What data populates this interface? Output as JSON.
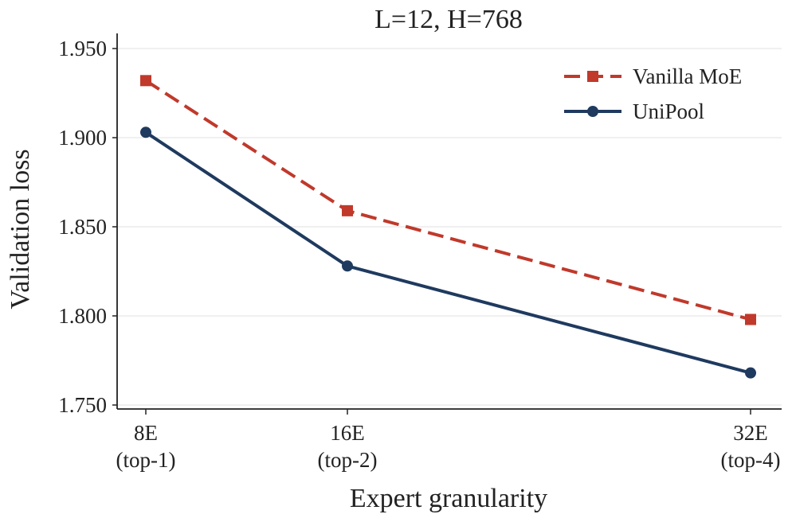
{
  "chart_data": {
    "type": "line",
    "title": "L=12, H=768",
    "xlabel": "Expert granularity",
    "ylabel": "Validation loss",
    "categories": [
      {
        "line1": "8E",
        "line2": "(top-1)",
        "x": 8
      },
      {
        "line1": "16E",
        "line2": "(top-2)",
        "x": 16
      },
      {
        "line1": "32E",
        "line2": "(top-4)",
        "x": 32
      }
    ],
    "ylim": [
      1.75,
      1.955
    ],
    "yticks": [
      1.75,
      1.8,
      1.85,
      1.9,
      1.95
    ],
    "ytick_labels": [
      "1.750",
      "1.800",
      "1.850",
      "1.900",
      "1.950"
    ],
    "grid": "horizontal",
    "legend_position": "top-right",
    "series": [
      {
        "name": "Vanilla MoE",
        "color": "#c0392b",
        "line_style": "dashed",
        "marker": "square",
        "values": [
          1.932,
          1.859,
          1.798
        ]
      },
      {
        "name": "UniPool",
        "color": "#1f3a5f",
        "line_style": "solid",
        "marker": "circle",
        "values": [
          1.903,
          1.828,
          1.768
        ]
      }
    ]
  }
}
